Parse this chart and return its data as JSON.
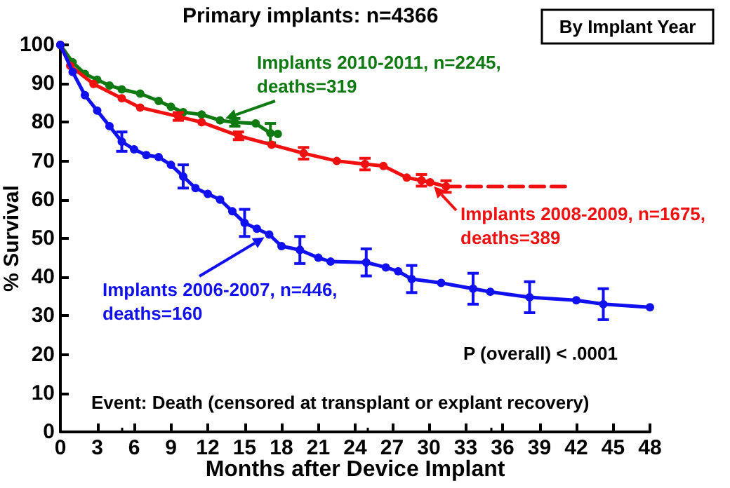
{
  "chart_data": {
    "type": "line",
    "title": "Primary implants: n=4366",
    "xlabel": "Months after Device Implant",
    "ylabel": "% Survival",
    "xlim": [
      0,
      48
    ],
    "xticks": [
      0,
      3,
      6,
      9,
      12,
      15,
      18,
      21,
      24,
      27,
      30,
      33,
      36,
      39,
      42,
      45,
      48
    ],
    "ylim": [
      0,
      100
    ],
    "yticks": [
      0,
      10,
      20,
      30,
      40,
      50,
      60,
      70,
      80,
      90,
      100
    ],
    "grid": false,
    "marker": "circle",
    "series": [
      {
        "color": "#0f7a12",
        "x": [
          0,
          1,
          2,
          3,
          4,
          5,
          6.5,
          8,
          9,
          10,
          11.5,
          13,
          14.2,
          15.9,
          17.1,
          17.7
        ],
        "values": [
          100,
          95.5,
          92.5,
          91,
          89.5,
          88.5,
          87.4,
          85.5,
          84,
          82.6,
          82,
          80.5,
          80,
          79.7,
          77.2,
          77
        ],
        "errors": [
          null,
          null,
          null,
          null,
          null,
          null,
          null,
          null,
          null,
          null,
          null,
          null,
          1,
          null,
          2.5,
          null
        ]
      },
      {
        "color": "#f01010",
        "x": [
          0,
          0.8,
          2.7,
          5,
          6.5,
          9.6,
          11.5,
          14.5,
          17.2,
          19.8,
          22.5,
          24.8,
          26.3,
          28.2,
          29.4,
          30.1,
          31.4
        ],
        "values": [
          100,
          94.6,
          89.9,
          86.2,
          83.8,
          81.5,
          80,
          76.5,
          74.2,
          72,
          70,
          69.2,
          68.7,
          65.7,
          65,
          64.5,
          63.4
        ],
        "errors": [
          null,
          null,
          null,
          null,
          null,
          1,
          null,
          1,
          null,
          1.5,
          null,
          1.5,
          null,
          null,
          1.5,
          null,
          1.5
        ]
      },
      {
        "color": "#f01010",
        "line_style": "dashed",
        "marker": "none",
        "x": [
          31.4,
          41.1
        ],
        "values": [
          63.4,
          63.4
        ]
      },
      {
        "color": "#1010f0",
        "x": [
          0,
          1,
          2,
          3,
          4,
          5,
          6,
          7,
          8,
          9,
          10,
          11,
          12,
          13,
          14,
          15,
          16,
          17,
          18,
          19.5,
          21,
          22,
          24.9,
          26.5,
          27.5,
          28.6,
          31,
          33.6,
          35,
          38.2,
          42,
          44.2,
          48
        ],
        "values": [
          100,
          93,
          87,
          83,
          79,
          75,
          73,
          71.5,
          71,
          69,
          66,
          63,
          61.5,
          60,
          57,
          54,
          52.5,
          51,
          48,
          47,
          45,
          44,
          43.8,
          42.5,
          41.5,
          39.5,
          38.5,
          37,
          36.2,
          34.8,
          34,
          33,
          32.2
        ],
        "errors": [
          null,
          null,
          null,
          null,
          null,
          2.5,
          null,
          null,
          null,
          null,
          3,
          null,
          null,
          null,
          null,
          3.5,
          null,
          null,
          null,
          3.5,
          null,
          null,
          3.5,
          null,
          null,
          3.5,
          null,
          4,
          null,
          4,
          null,
          4,
          null
        ]
      }
    ],
    "annotations": [
      {
        "text": "Implants 2010-2011, n=2245,\ndeaths=319",
        "x": 13,
        "y": 80.5
      },
      {
        "text": "Implants 2008-2009, n=1675,\ndeaths=389",
        "x": 30.1,
        "y": 64.5
      },
      {
        "text": "Implants 2006-2007, n=446,\ndeaths=160",
        "x": 17,
        "y": 51
      },
      "By Implant Year",
      "P (overall) < .0001",
      "Event: Death (censored at transplant or explant recovery)"
    ]
  }
}
